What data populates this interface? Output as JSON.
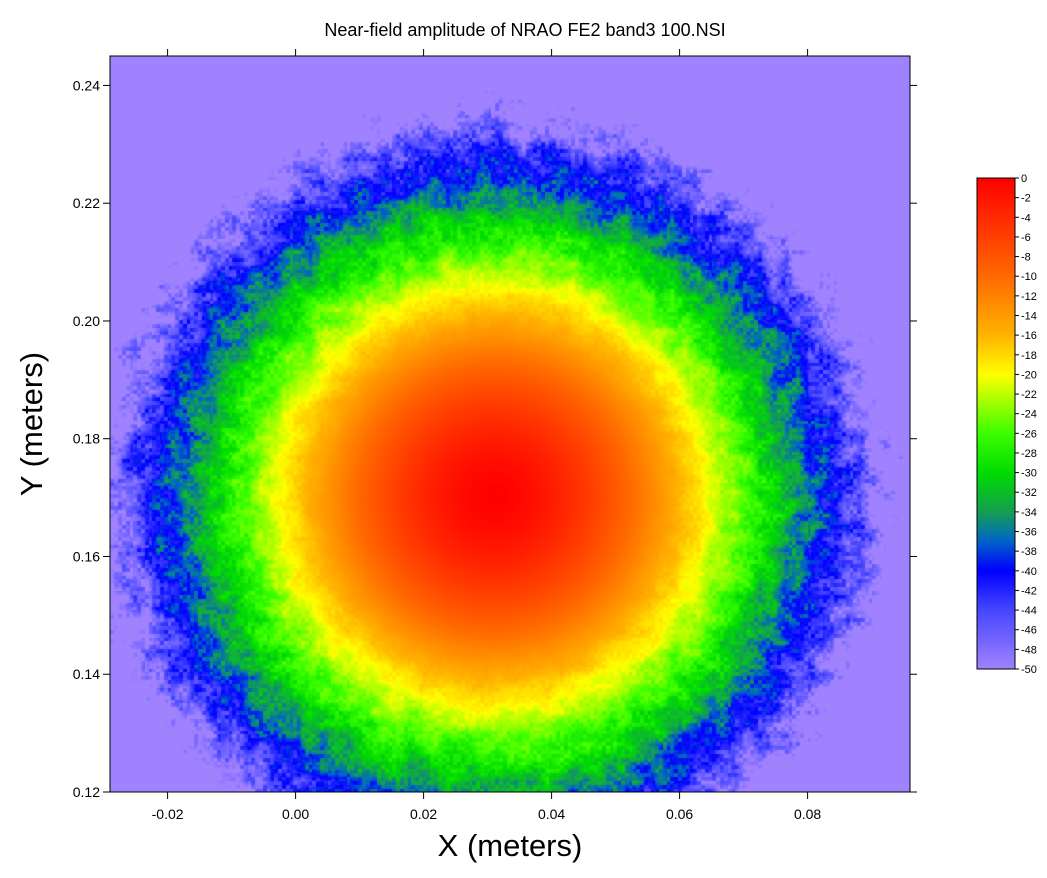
{
  "chart_data": {
    "type": "heatmap",
    "title": "Near-field amplitude of NRAO FE2 band3 100.NSI",
    "xlabel": "X (meters)",
    "ylabel": "Y (meters)",
    "xlim": [
      -0.029,
      0.096
    ],
    "ylim": [
      0.12,
      0.245
    ],
    "x_ticks": [
      "-0.02",
      "0.00",
      "0.02",
      "0.04",
      "0.06",
      "0.08"
    ],
    "y_ticks": [
      "0.12",
      "0.14",
      "0.16",
      "0.18",
      "0.20",
      "0.22",
      "0.24"
    ],
    "peak": {
      "x": 0.031,
      "y": 0.17,
      "value": 0
    },
    "colorbar": {
      "min": -50,
      "max": 0,
      "labels": [
        "0",
        "-2",
        "-4",
        "-6",
        "-8",
        "-10",
        "-12",
        "-14",
        "-16",
        "-18",
        "-20",
        "-22",
        "-24",
        "-26",
        "-28",
        "-30",
        "-32",
        "-34",
        "-36",
        "-38",
        "-40",
        "-42",
        "-44",
        "-46",
        "-48",
        "-50"
      ],
      "colors": [
        {
          "value": 0,
          "color": "#ff0000"
        },
        {
          "value": -10,
          "color": "#ff6a00"
        },
        {
          "value": -16,
          "color": "#ffb400"
        },
        {
          "value": -20,
          "color": "#ffff00"
        },
        {
          "value": -26,
          "color": "#3cff00"
        },
        {
          "value": -30,
          "color": "#00dc00"
        },
        {
          "value": -34,
          "color": "#14a050"
        },
        {
          "value": -37,
          "color": "#0064c8"
        },
        {
          "value": -40,
          "color": "#0000ff"
        },
        {
          "value": -44,
          "color": "#4646ff"
        },
        {
          "value": -50,
          "color": "#a082ff"
        }
      ]
    }
  }
}
